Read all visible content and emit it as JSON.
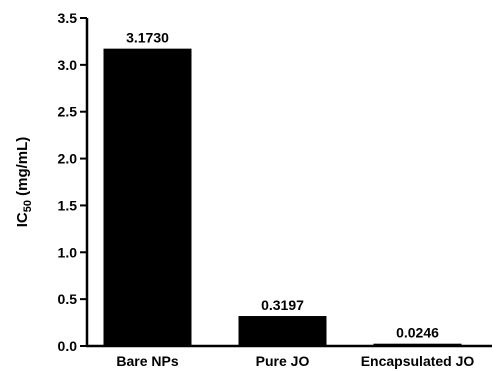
{
  "chart_data": {
    "type": "bar",
    "categories": [
      "Bare NPs",
      "Pure JO",
      "Encapsulated JO"
    ],
    "values": [
      3.173,
      0.3197,
      0.0246
    ],
    "data_labels": [
      "3.1730",
      "0.3197",
      "0.0246"
    ],
    "title": "",
    "xlabel": "",
    "ylabel": {
      "prefix": "IC",
      "subscript": "50",
      "suffix": " (mg/mL)"
    },
    "ylim": [
      0,
      3.5
    ],
    "yticks": [
      0.0,
      0.5,
      1.0,
      1.5,
      2.0,
      2.5,
      3.0,
      3.5
    ],
    "ytick_labels": [
      "0.0",
      "0.5",
      "1.0",
      "1.5",
      "2.0",
      "2.5",
      "3.0",
      "3.5"
    ],
    "bar_color": "#000000",
    "grid": false,
    "legend": "none"
  }
}
